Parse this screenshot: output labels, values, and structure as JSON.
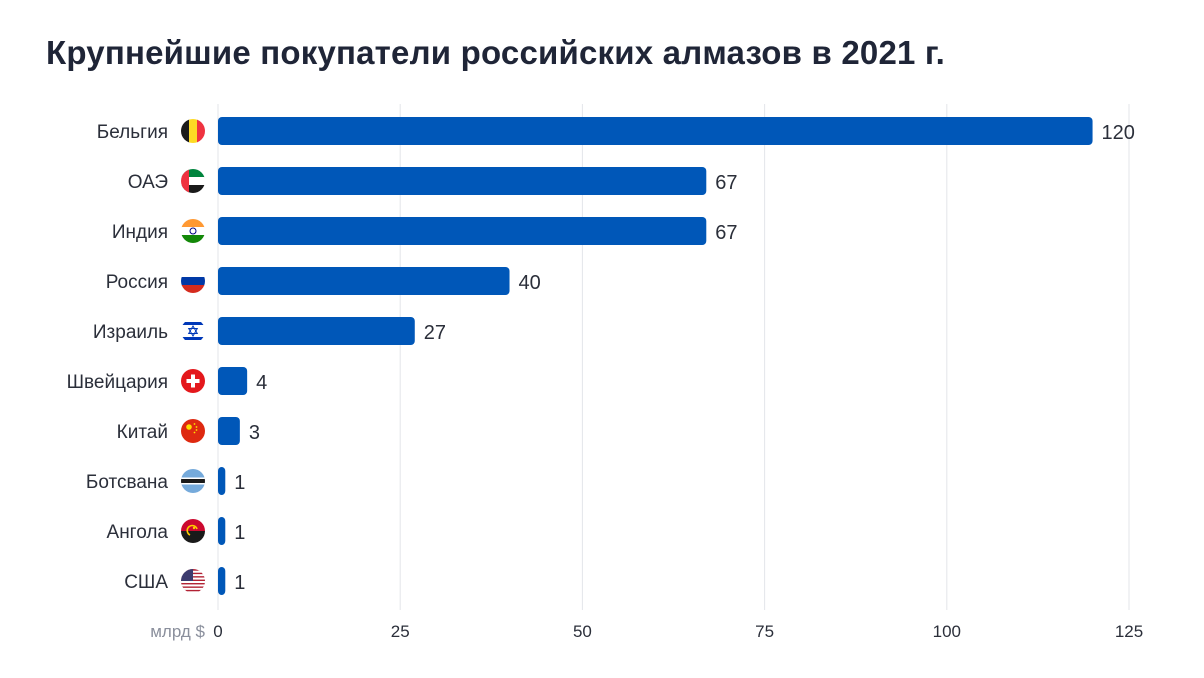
{
  "title": "Крупнейшие покупатели российских алмазов в 2021 г.",
  "chart_data": {
    "type": "bar",
    "orientation": "horizontal",
    "title": "Крупнейшие покупатели российских алмазов в 2021 г.",
    "xlabel": "млрд $",
    "ylabel": "",
    "categories": [
      "Бельгия",
      "ОАЭ",
      "Индия",
      "Россия",
      "Израиль",
      "Швейцария",
      "Китай",
      "Ботсвана",
      "Ангола",
      "США"
    ],
    "values": [
      120,
      67,
      67,
      40,
      27,
      4,
      3,
      1,
      1,
      1
    ],
    "value_labels": [
      "120",
      "67",
      "67",
      "40",
      "27",
      "4",
      "3",
      "1",
      "1",
      "1"
    ],
    "xlim": [
      0,
      125
    ],
    "xticks": [
      0,
      25,
      50,
      75,
      100,
      125
    ],
    "xtick_labels": [
      "0",
      "25",
      "50",
      "75",
      "100",
      "125"
    ],
    "grid": "vertical",
    "bar_color": "#0057b8",
    "flag_icons": [
      "belgium-flag-icon",
      "uae-flag-icon",
      "india-flag-icon",
      "russia-flag-icon",
      "israel-flag-icon",
      "switzerland-flag-icon",
      "china-flag-icon",
      "botswana-flag-icon",
      "angola-flag-icon",
      "usa-flag-icon"
    ]
  }
}
